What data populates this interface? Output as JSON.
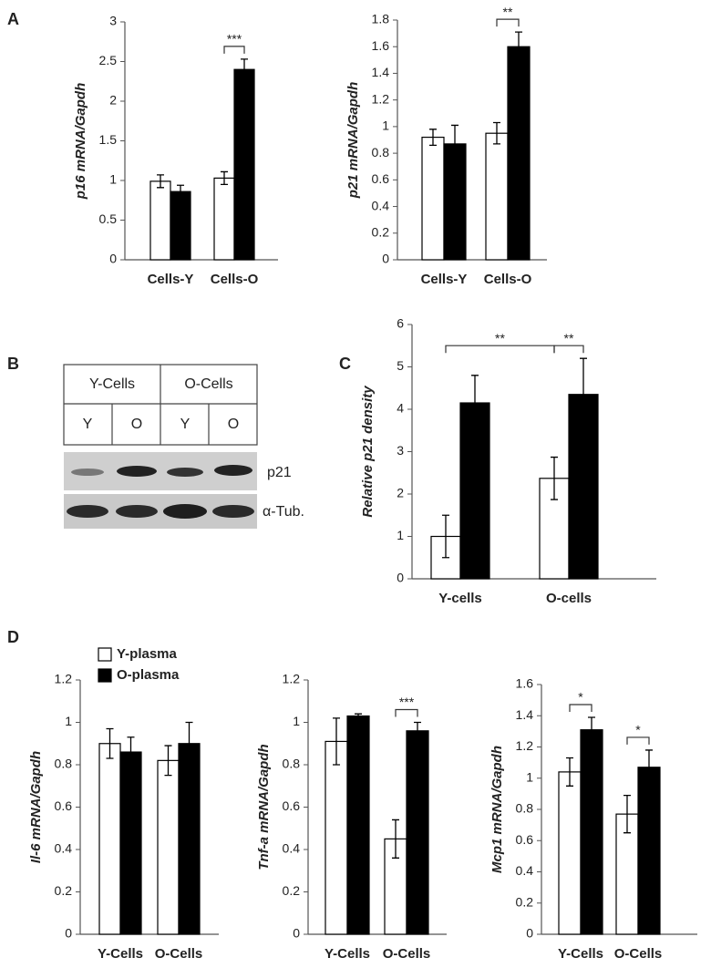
{
  "panels": [
    "A",
    "B",
    "C",
    "D"
  ],
  "blot": {
    "groups": [
      "Y-Cells",
      "O-Cells"
    ],
    "lanes": [
      "Y",
      "O",
      "Y",
      "O"
    ],
    "bands": [
      "p21",
      "α-Tub."
    ]
  },
  "chart_data": [
    {
      "type": "bar",
      "ylabel": "p16 mRNA/Gapdh",
      "categories": [
        "Cells-Y",
        "Cells-O"
      ],
      "ylim": [
        0,
        3
      ],
      "yticks": [
        0,
        0.5,
        1,
        1.5,
        2,
        2.5,
        3
      ],
      "series": [
        {
          "color": "#ffffff",
          "values": [
            0.99,
            1.03
          ],
          "errors": [
            0.08,
            0.08
          ]
        },
        {
          "color": "#000000",
          "values": [
            0.86,
            2.4
          ],
          "errors": [
            0.08,
            0.13
          ]
        }
      ],
      "annotations": [
        "***"
      ]
    },
    {
      "type": "bar",
      "ylabel": "p21 mRNA/Gapdh",
      "categories": [
        "Cells-Y",
        "Cells-O"
      ],
      "ylim": [
        0,
        1.8
      ],
      "yticks": [
        0,
        0.2,
        0.4,
        0.6,
        0.8,
        1,
        1.2,
        1.4,
        1.6,
        1.8
      ],
      "series": [
        {
          "color": "#ffffff",
          "values": [
            0.92,
            0.95
          ],
          "errors": [
            0.06,
            0.08
          ]
        },
        {
          "color": "#000000",
          "values": [
            0.87,
            1.6
          ],
          "errors": [
            0.14,
            0.11
          ]
        }
      ],
      "annotations": [
        "**"
      ]
    },
    {
      "type": "bar",
      "ylabel": "Relative p21 density",
      "categories": [
        "Y-cells",
        "O-cells"
      ],
      "ylim": [
        0,
        6
      ],
      "yticks": [
        0,
        1,
        2,
        3,
        4,
        5,
        6
      ],
      "series": [
        {
          "color": "#ffffff",
          "values": [
            1.0,
            2.37
          ],
          "errors": [
            0.5,
            0.5
          ]
        },
        {
          "color": "#000000",
          "values": [
            4.15,
            4.35
          ],
          "errors": [
            0.65,
            0.85
          ]
        }
      ],
      "annotations": [
        "**",
        "**"
      ]
    },
    {
      "type": "bar",
      "ylabel": "Il-6 mRNA/Gapdh",
      "categories": [
        "Y-Cells",
        "O-Cells"
      ],
      "ylim": [
        0,
        1.2
      ],
      "yticks": [
        0,
        0.2,
        0.4,
        0.6,
        0.8,
        1,
        1.2
      ],
      "legend": "top-left",
      "series": [
        {
          "name": "Y-plasma",
          "color": "#ffffff",
          "values": [
            0.9,
            0.82
          ],
          "errors": [
            0.07,
            0.07
          ]
        },
        {
          "name": "O-plasma",
          "color": "#000000",
          "values": [
            0.86,
            0.9
          ],
          "errors": [
            0.07,
            0.1
          ]
        }
      ],
      "annotations": []
    },
    {
      "type": "bar",
      "ylabel": "Tnf-a mRNA/Gapdh",
      "categories": [
        "Y-Cells",
        "O-Cells"
      ],
      "ylim": [
        0,
        1.2
      ],
      "yticks": [
        0,
        0.2,
        0.4,
        0.6,
        0.8,
        1,
        1.2
      ],
      "series": [
        {
          "color": "#ffffff",
          "values": [
            0.91,
            0.45
          ],
          "errors": [
            0.11,
            0.09
          ]
        },
        {
          "color": "#000000",
          "values": [
            1.03,
            0.96
          ],
          "errors": [
            0.01,
            0.04
          ]
        }
      ],
      "annotations": [
        "***"
      ]
    },
    {
      "type": "bar",
      "ylabel": "Mcp1 mRNA/Gapdh",
      "categories": [
        "Y-Cells",
        "O-Cells"
      ],
      "ylim": [
        0,
        1.6
      ],
      "yticks": [
        0,
        0.2,
        0.4,
        0.6,
        0.8,
        1,
        1.2,
        1.4,
        1.6
      ],
      "series": [
        {
          "color": "#ffffff",
          "values": [
            1.04,
            0.77
          ],
          "errors": [
            0.09,
            0.12
          ]
        },
        {
          "color": "#000000",
          "values": [
            1.31,
            1.07
          ],
          "errors": [
            0.08,
            0.11
          ]
        }
      ],
      "annotations": [
        "*",
        "*"
      ]
    }
  ]
}
